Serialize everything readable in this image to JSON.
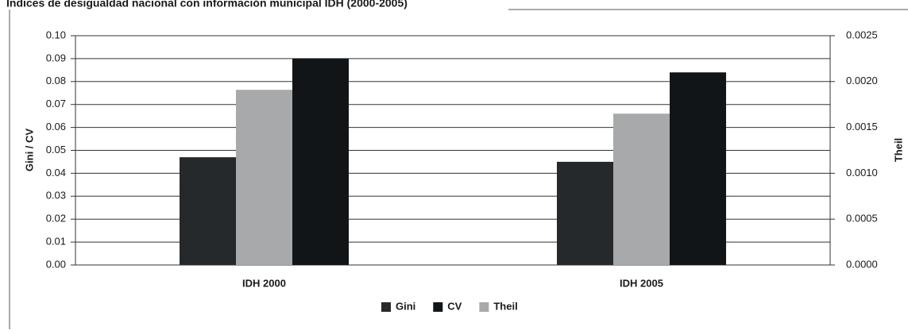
{
  "chart_data": {
    "type": "bar",
    "title": "Índices de desigualdad nacional con información municipal IDH (2000-2005)",
    "categories": [
      "IDH 2000",
      "IDH 2005"
    ],
    "series": [
      {
        "name": "Gini",
        "color": "#25292c",
        "values": [
          0.047,
          0.045
        ]
      },
      {
        "name": "CV",
        "color": "#111517",
        "values": [
          0.09,
          0.084
        ]
      },
      {
        "name": "Theil",
        "color": "#a7a9ab",
        "values": [
          0.00191,
          0.00165
        ],
        "axis": "y2"
      }
    ],
    "ylabel": "Gini / CV",
    "y2label": "Theil",
    "ylim": [
      0,
      0.1
    ],
    "yticks": [
      {
        "value": 0,
        "label": "0.00"
      },
      0.01,
      0.02,
      0.03,
      0.04,
      0.05,
      0.06,
      0.07,
      0.08,
      0.09,
      {
        "value": 0.1,
        "label": "0.10"
      }
    ],
    "y2lim": [
      0,
      0.0025
    ],
    "y2ticks": [
      {
        "value": 0,
        "label": "0.0000"
      },
      0.0005,
      {
        "value": 0.001,
        "label": "0.0010"
      },
      0.0015,
      {
        "value": 0.002,
        "label": "0.0020"
      },
      0.0025
    ],
    "grid": true,
    "legend": "bottom"
  }
}
